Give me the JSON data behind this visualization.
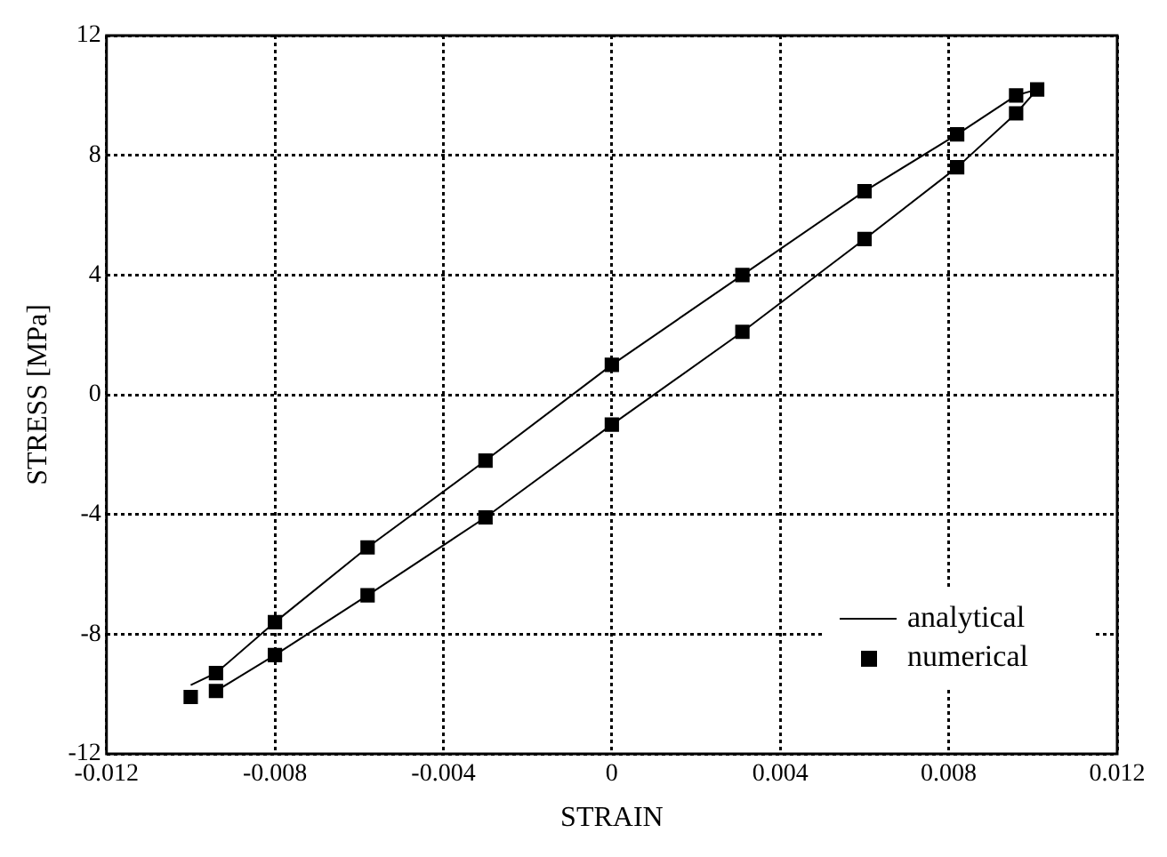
{
  "chart_data": {
    "type": "line",
    "xlabel": "STRAIN",
    "ylabel": "STRESS [MPa]",
    "xlim": [
      -0.012,
      0.012
    ],
    "xticks": [
      -0.012,
      -0.008,
      -0.004,
      0,
      0.004,
      0.008,
      0.012
    ],
    "ylim": [
      -12,
      12
    ],
    "yticks": [
      -12,
      -8,
      -4,
      0,
      4,
      8,
      12
    ],
    "grid": true,
    "legend": "bottom right",
    "series": [
      {
        "name": "analytical",
        "marker": "none",
        "color": "#000000",
        "x": [
          -0.01,
          -0.0094,
          -0.008,
          -0.0058,
          -0.003,
          0,
          0.0031,
          0.006,
          0.0082,
          0.0096,
          0.0101
        ],
        "values": [
          -9.7,
          -9.3,
          -7.6,
          -5.1,
          -2.2,
          1.0,
          4.0,
          6.8,
          8.7,
          10.0,
          10.2
        ]
      },
      {
        "type": "line",
        "marker": "none",
        "color": "#000000",
        "x": [
          -0.0094,
          -0.008,
          -0.0058,
          -0.003,
          0,
          0.0031,
          0.006,
          0.0082,
          0.0096,
          0.0101
        ],
        "values": [
          -9.9,
          -8.7,
          -6.7,
          -4.1,
          -1.0,
          2.1,
          5.2,
          7.6,
          9.4,
          10.2
        ]
      },
      {
        "name": "numerical",
        "type": "scatter",
        "marker": "square",
        "color": "#000000",
        "x": [
          -0.0094,
          -0.008,
          -0.0058,
          -0.003,
          0,
          0.0031,
          0.006,
          0.0082,
          0.0096,
          0.0101,
          0.0096,
          0.0082,
          0.006,
          0.0031,
          0,
          -0.003,
          -0.0058,
          -0.008,
          -0.0094,
          -0.01
        ],
        "values": [
          -9.3,
          -7.6,
          -5.1,
          -2.2,
          1.0,
          4.0,
          6.8,
          8.7,
          10.0,
          10.2,
          9.4,
          7.6,
          5.2,
          2.1,
          -1.0,
          -4.1,
          -6.7,
          -8.7,
          -9.9,
          -10.1
        ]
      }
    ]
  }
}
